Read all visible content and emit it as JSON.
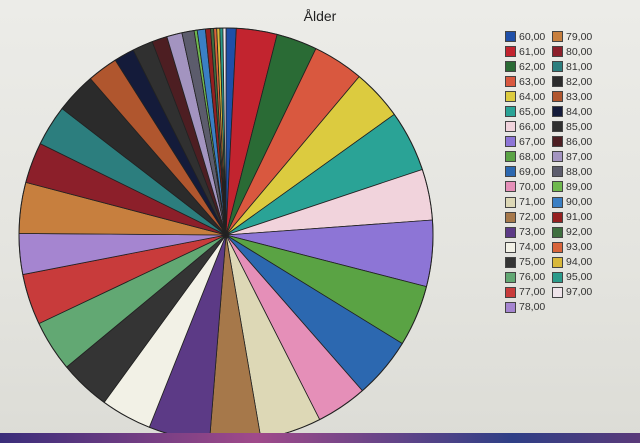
{
  "chart_data": {
    "type": "pie",
    "title": "Ålder",
    "legend_position": "right",
    "categories": [
      "60,00",
      "61,00",
      "62,00",
      "63,00",
      "64,00",
      "65,00",
      "66,00",
      "67,00",
      "68,00",
      "69,00",
      "70,00",
      "71,00",
      "72,00",
      "73,00",
      "74,00",
      "75,00",
      "76,00",
      "77,00",
      "78,00",
      "79,00",
      "80,00",
      "81,00",
      "82,00",
      "83,00",
      "84,00",
      "85,00",
      "86,00",
      "87,00",
      "88,00",
      "89,00",
      "90,00",
      "91,00",
      "92,00",
      "93,00",
      "94,00",
      "95,00",
      "97,00"
    ],
    "values": [
      1,
      4,
      4,
      5,
      5,
      6,
      5,
      6.5,
      6,
      6,
      5,
      6,
      5,
      6,
      5,
      5,
      5,
      5,
      4,
      5,
      4,
      4,
      4,
      3,
      2,
      2,
      1.5,
      1.5,
      1.2,
      0.3,
      0.8,
      0.5,
      0.3,
      0.3,
      0.3,
      0.3,
      0.3
    ],
    "colors": [
      "#1f4fa8",
      "#c2242f",
      "#2a6b35",
      "#d9583f",
      "#dccb3f",
      "#2aa396",
      "#f1d3dc",
      "#8d75d6",
      "#5aa344",
      "#2c68b0",
      "#e58fb8",
      "#ddd8b6",
      "#a6784a",
      "#5c3a86",
      "#f2f1e6",
      "#343434",
      "#62a873",
      "#c83b3b",
      "#a585d0",
      "#c77f3e",
      "#8c1f2a",
      "#2c7e7e",
      "#2b2b2b",
      "#b0562e",
      "#141b3a",
      "#303030",
      "#4d1e22",
      "#a394c0",
      "#5c5c6c",
      "#6fb84e",
      "#3a7fc4",
      "#962020",
      "#3f6f3f",
      "#d8643a",
      "#d8b83a",
      "#2a9a8a",
      "#efe4ea"
    ]
  }
}
